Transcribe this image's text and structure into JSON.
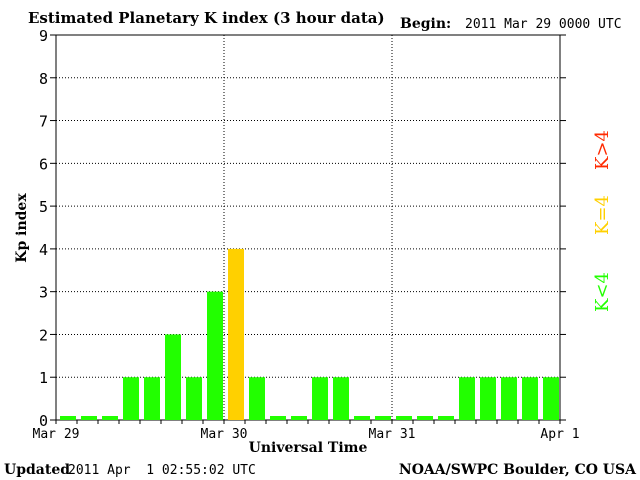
{
  "header": {
    "title": "Estimated Planetary K index (3 hour data)",
    "begin_label": "Begin:",
    "begin_value": "2011 Mar 29 0000 UTC"
  },
  "footer": {
    "updated_label": "Updated",
    "updated_value": "2011 Apr  1 02:55:02 UTC",
    "source": "NOAA/SWPC Boulder, CO USA"
  },
  "legend": [
    {
      "label": "K>4",
      "color": "#ff2a00"
    },
    {
      "label": "K=4",
      "color": "#ffd000"
    },
    {
      "label": "K<4",
      "color": "#22ff00"
    }
  ],
  "chart_data": {
    "type": "bar",
    "title": "Estimated Planetary K index (3 hour data)",
    "xlabel": "Universal Time",
    "ylabel": "Kp index",
    "ylim": [
      0,
      9
    ],
    "yticks": [
      0,
      1,
      2,
      3,
      4,
      5,
      6,
      7,
      8,
      9
    ],
    "xtick_labels": [
      "Mar 29",
      "Mar 30",
      "Mar 31",
      "Apr 1"
    ],
    "bars_per_day": 8,
    "grid": true,
    "values": [
      0,
      0,
      0,
      1,
      1,
      2,
      1,
      3,
      4,
      1,
      0,
      0,
      1,
      1,
      0,
      0,
      0,
      0,
      0,
      1,
      1,
      1,
      1,
      1
    ],
    "colors": {
      "below_4": "#22ff00",
      "equal_4": "#ffd000",
      "above_4": "#ff2a00"
    }
  }
}
